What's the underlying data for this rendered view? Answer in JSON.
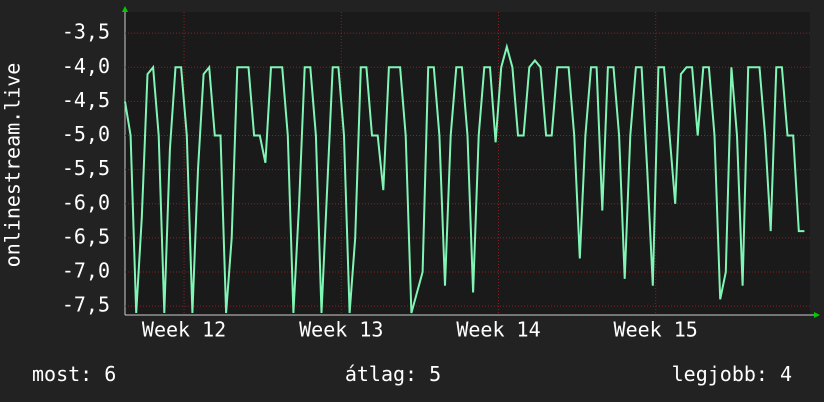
{
  "chart_data": {
    "type": "line",
    "y_label": "onlinestream.live",
    "color": "#80f5b5",
    "xlim": [
      0,
      30.5
    ],
    "xticks": [
      {
        "value": 2.63,
        "label": "Week 12"
      },
      {
        "value": 9.63,
        "label": "Week 13"
      },
      {
        "value": 16.63,
        "label": "Week 14"
      },
      {
        "value": 23.63,
        "label": "Week 15"
      }
    ],
    "ylim": [
      -7.63,
      -3.19
    ],
    "yticks": [
      {
        "value": -3.5,
        "label": "-3,5"
      },
      {
        "value": -4.0,
        "label": "-4,0"
      },
      {
        "value": -4.5,
        "label": "-4,5"
      },
      {
        "value": -5.0,
        "label": "-5,0"
      },
      {
        "value": -5.5,
        "label": "-5,5"
      },
      {
        "value": -6.0,
        "label": "-6,0"
      },
      {
        "value": -6.5,
        "label": "-6,5"
      },
      {
        "value": -7.0,
        "label": "-7,0"
      },
      {
        "value": -7.5,
        "label": "-7,5"
      }
    ],
    "grid": true,
    "x": [
      0,
      0.25,
      0.5,
      0.75,
      1,
      1.25,
      1.5,
      1.75,
      2,
      2.25,
      2.5,
      2.75,
      3,
      3.25,
      3.5,
      3.75,
      4,
      4.25,
      4.5,
      4.75,
      5,
      5.25,
      5.5,
      5.75,
      6,
      6.25,
      6.5,
      6.75,
      7,
      7.25,
      7.5,
      7.75,
      8,
      8.25,
      8.5,
      8.75,
      9,
      9.25,
      9.5,
      9.75,
      10,
      10.25,
      10.5,
      10.75,
      11,
      11.25,
      11.5,
      11.75,
      12,
      12.25,
      12.5,
      12.75,
      13,
      13.25,
      13.5,
      13.75,
      14,
      14.25,
      14.5,
      14.75,
      15,
      15.25,
      15.5,
      15.75,
      16,
      16.25,
      16.5,
      16.75,
      17,
      17.25,
      17.5,
      17.75,
      18,
      18.25,
      18.5,
      18.75,
      19,
      19.25,
      19.5,
      19.75,
      20,
      20.25,
      20.5,
      20.75,
      21,
      21.25,
      21.5,
      21.75,
      22,
      22.25,
      22.5,
      22.75,
      23,
      23.25,
      23.5,
      23.75,
      24,
      24.25,
      24.5,
      24.75,
      25,
      25.25,
      25.5,
      25.75,
      26,
      26.25,
      26.5,
      26.75,
      27,
      27.25,
      27.5,
      27.75,
      28,
      28.25,
      28.5,
      28.75,
      29,
      29.25,
      29.5,
      29.75,
      30,
      30.25
    ],
    "values": [
      -4.5,
      -5,
      -7.6,
      -6.2,
      -4.1,
      -4.0,
      -5.0,
      -7.6,
      -5.2,
      -4.0,
      -4.0,
      -5.0,
      -7.6,
      -5.5,
      -4.1,
      -4.0,
      -5.0,
      -5.0,
      -7.6,
      -6.5,
      -4.0,
      -4.0,
      -4.0,
      -5.0,
      -5.0,
      -5.4,
      -4.0,
      -4.0,
      -4.0,
      -5.0,
      -7.6,
      -6.0,
      -4.0,
      -4.0,
      -5.0,
      -7.6,
      -5.8,
      -4.0,
      -4.0,
      -5.0,
      -7.6,
      -6.5,
      -4.0,
      -4.0,
      -5.0,
      -5.0,
      -5.8,
      -4.0,
      -4.0,
      -4.0,
      -5.0,
      -7.6,
      -7.3,
      -7.0,
      -4.0,
      -4.0,
      -5.0,
      -7.2,
      -5.0,
      -4.0,
      -4.0,
      -5.0,
      -7.3,
      -5.0,
      -4.0,
      -4.0,
      -5.1,
      -4.0,
      -3.7,
      -4.0,
      -5.0,
      -5.0,
      -4.0,
      -3.9,
      -4.0,
      -5.0,
      -5.0,
      -4.0,
      -4.0,
      -4.0,
      -5.0,
      -6.8,
      -5.0,
      -4.0,
      -4.0,
      -6.1,
      -4.0,
      -4.0,
      -5.0,
      -7.1,
      -5.0,
      -4.0,
      -4.0,
      -5.5,
      -7.2,
      -4.0,
      -4.0,
      -5.0,
      -6.0,
      -4.1,
      -4.0,
      -4.0,
      -5.0,
      -4.0,
      -4.0,
      -5.0,
      -7.4,
      -7.0,
      -4.0,
      -5.0,
      -7.2,
      -4.0,
      -4.0,
      -4.0,
      -5.0,
      -6.4,
      -4.0,
      -4.0,
      -5.0,
      -5.0,
      -6.4,
      -6.4
    ],
    "stats": [
      {
        "label": "most:",
        "value": 6
      },
      {
        "label": "átlag:",
        "value": 5
      },
      {
        "label": "legjobb:",
        "value": 4
      }
    ]
  }
}
